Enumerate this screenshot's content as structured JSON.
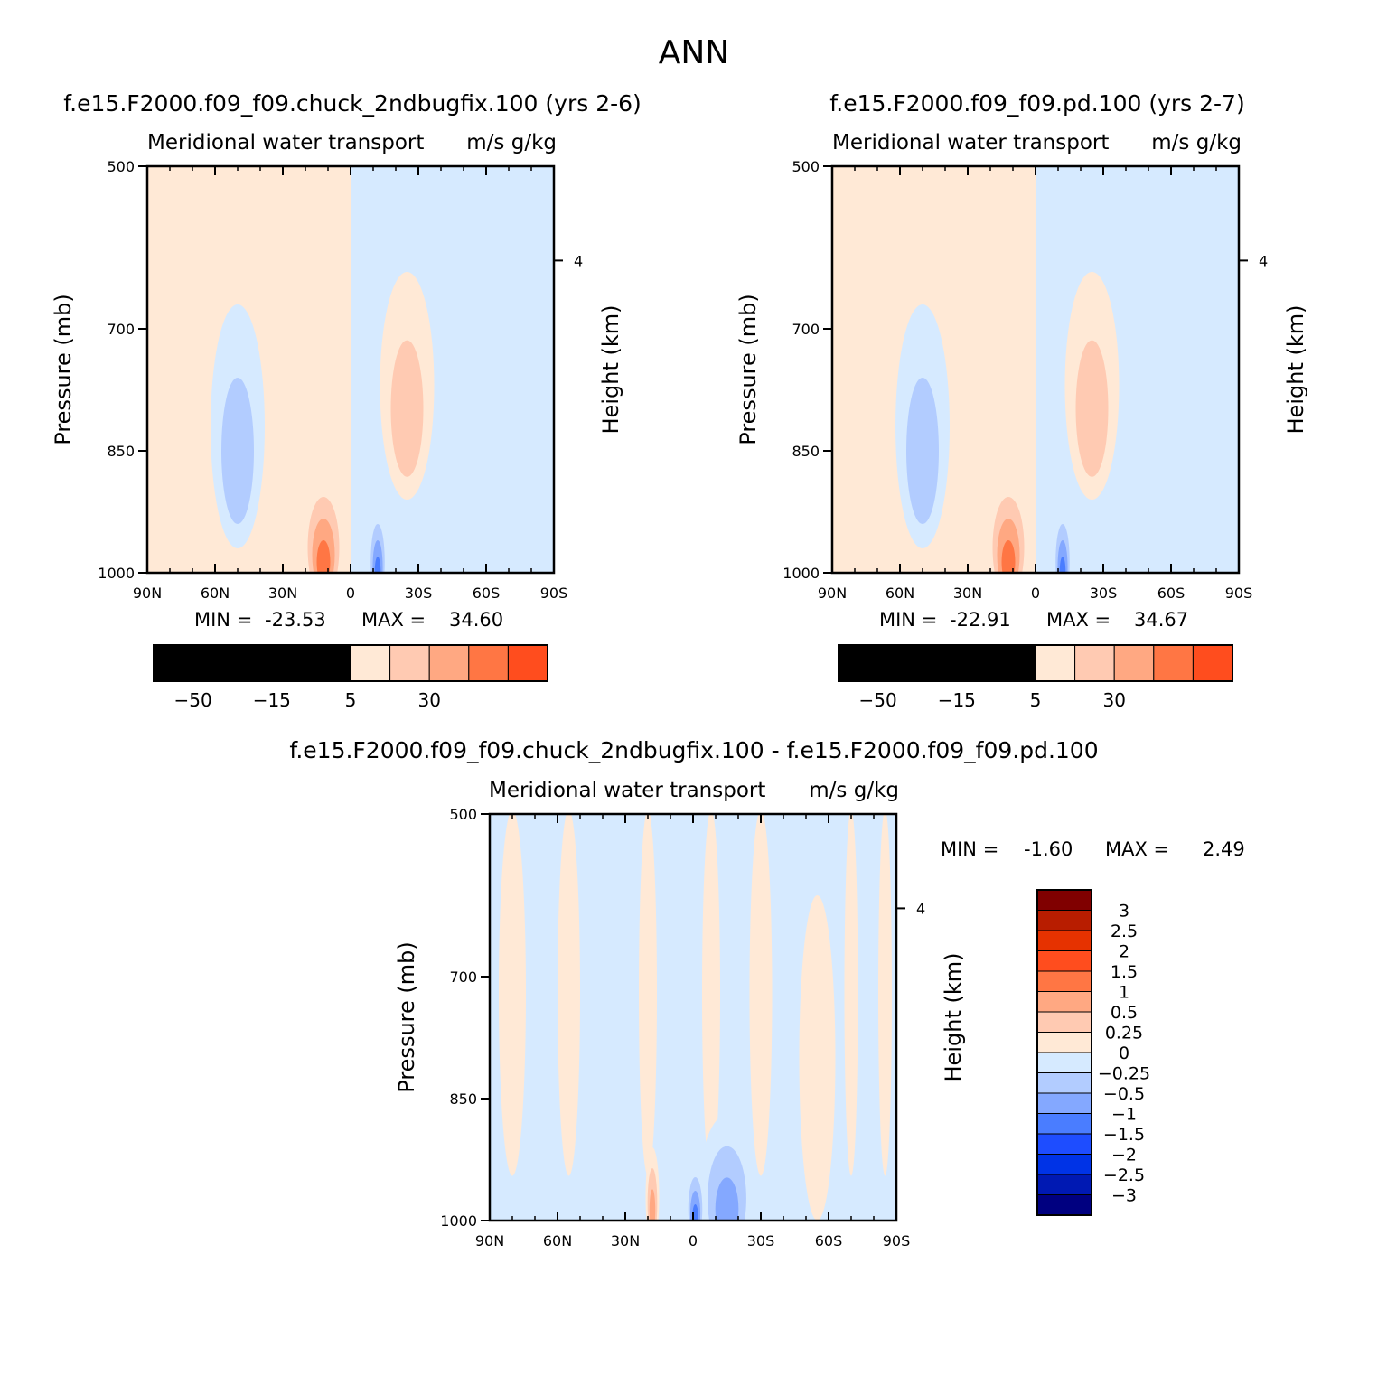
{
  "title": "ANN",
  "palette": {
    "red": [
      "#ffe9d6",
      "#ffcab2",
      "#ffa882",
      "#ff7644",
      "#ff4d1e",
      "#e63200",
      "#b81d00",
      "#800000"
    ],
    "blue": [
      "#d6eaff",
      "#b2ccff",
      "#84a8ff",
      "#4a7dff",
      "#1e4dff",
      "#0033e6",
      "#0019b3",
      "#000080"
    ]
  },
  "chart_data": [
    {
      "type": "heatmap",
      "subtitle": "f.e15.F2000.f09_f09.chuck_2ndbugfix.100 (yrs 2-6)",
      "variable": "Meridional water transport",
      "units": "m/s g/kg",
      "ylabel": "Pressure (mb)",
      "ylabel_right": "Height (km)",
      "x_ticks": [
        "90N",
        "60N",
        "30N",
        "0",
        "30S",
        "60S",
        "90S"
      ],
      "y_ticks": [
        "500",
        "700",
        "850",
        "1000"
      ],
      "y_right_ticks": [
        "4"
      ],
      "stats": {
        "min_label": "MIN =",
        "min": "-23.53",
        "max_label": "MAX =",
        "max": "34.60"
      },
      "colorbar": {
        "orientation": "horizontal",
        "levels": [
          "-50",
          "-30",
          "-15",
          "-5",
          "5",
          "15",
          "30",
          "50"
        ]
      },
      "features": [
        {
          "label": "positive",
          "level": 1,
          "lat": -25,
          "p": 770,
          "spread_lat": 12,
          "spread_p": 140
        },
        {
          "label": "positive",
          "level": 3,
          "lat": 12,
          "p": 960,
          "spread_lat": 9,
          "spread_p": 80
        },
        {
          "label": "negative",
          "level": 1,
          "lat": 50,
          "p": 820,
          "spread_lat": 12,
          "spread_p": 150
        },
        {
          "label": "negative",
          "level": 3,
          "lat": -12,
          "p": 980,
          "spread_lat": 4,
          "spread_p": 60
        }
      ]
    },
    {
      "type": "heatmap",
      "subtitle": "f.e15.F2000.f09_f09.pd.100 (yrs 2-7)",
      "variable": "Meridional water transport",
      "units": "m/s g/kg",
      "ylabel": "Pressure (mb)",
      "ylabel_right": "Height (km)",
      "x_ticks": [
        "90N",
        "60N",
        "30N",
        "0",
        "30S",
        "60S",
        "90S"
      ],
      "y_ticks": [
        "500",
        "700",
        "850",
        "1000"
      ],
      "y_right_ticks": [
        "4"
      ],
      "stats": {
        "min_label": "MIN =",
        "min": "-22.91",
        "max_label": "MAX =",
        "max": "34.67"
      },
      "colorbar": {
        "orientation": "horizontal",
        "levels": [
          "-50",
          "-30",
          "-15",
          "-5",
          "5",
          "15",
          "30",
          "50"
        ]
      },
      "features": [
        {
          "label": "positive",
          "level": 1,
          "lat": -25,
          "p": 770,
          "spread_lat": 12,
          "spread_p": 140
        },
        {
          "label": "positive",
          "level": 3,
          "lat": 12,
          "p": 960,
          "spread_lat": 9,
          "spread_p": 80
        },
        {
          "label": "negative",
          "level": 1,
          "lat": 50,
          "p": 820,
          "spread_lat": 12,
          "spread_p": 150
        },
        {
          "label": "negative",
          "level": 3,
          "lat": -12,
          "p": 980,
          "spread_lat": 4,
          "spread_p": 60
        }
      ]
    },
    {
      "type": "heatmap",
      "subtitle": "f.e15.F2000.f09_f09.chuck_2ndbugfix.100 - f.e15.F2000.f09_f09.pd.100",
      "variable": "Meridional water transport",
      "units": "m/s g/kg",
      "ylabel": "Pressure (mb)",
      "ylabel_right": "Height (km)",
      "x_ticks": [
        "90N",
        "60N",
        "30N",
        "0",
        "30S",
        "60S",
        "90S"
      ],
      "y_ticks": [
        "500",
        "700",
        "850",
        "1000"
      ],
      "y_right_ticks": [
        "4"
      ],
      "stats": {
        "min_label": "MIN =",
        "min": "-1.60",
        "max_label": "MAX =",
        "max": "2.49"
      },
      "colorbar": {
        "orientation": "vertical",
        "levels": [
          "3",
          "2.5",
          "2",
          "1.5",
          "1",
          "0.5",
          "0.25",
          "0",
          "-0.25",
          "-0.5",
          "-1",
          "-1.5",
          "-2",
          "-2.5",
          "-3"
        ]
      },
      "features": [
        {
          "label": "negative",
          "level": 2,
          "lat": -15,
          "p": 960,
          "spread_lat": 12,
          "spread_p": 90
        },
        {
          "label": "negative",
          "level": 3,
          "lat": -1,
          "p": 980,
          "spread_lat": 4,
          "spread_p": 50
        },
        {
          "label": "positive",
          "level": 2,
          "lat": 18,
          "p": 970,
          "spread_lat": 3,
          "spread_p": 60
        },
        {
          "label": "positive",
          "level": 0,
          "lat": -55,
          "p": 800,
          "spread_lat": 8,
          "spread_p": 200
        }
      ]
    }
  ]
}
